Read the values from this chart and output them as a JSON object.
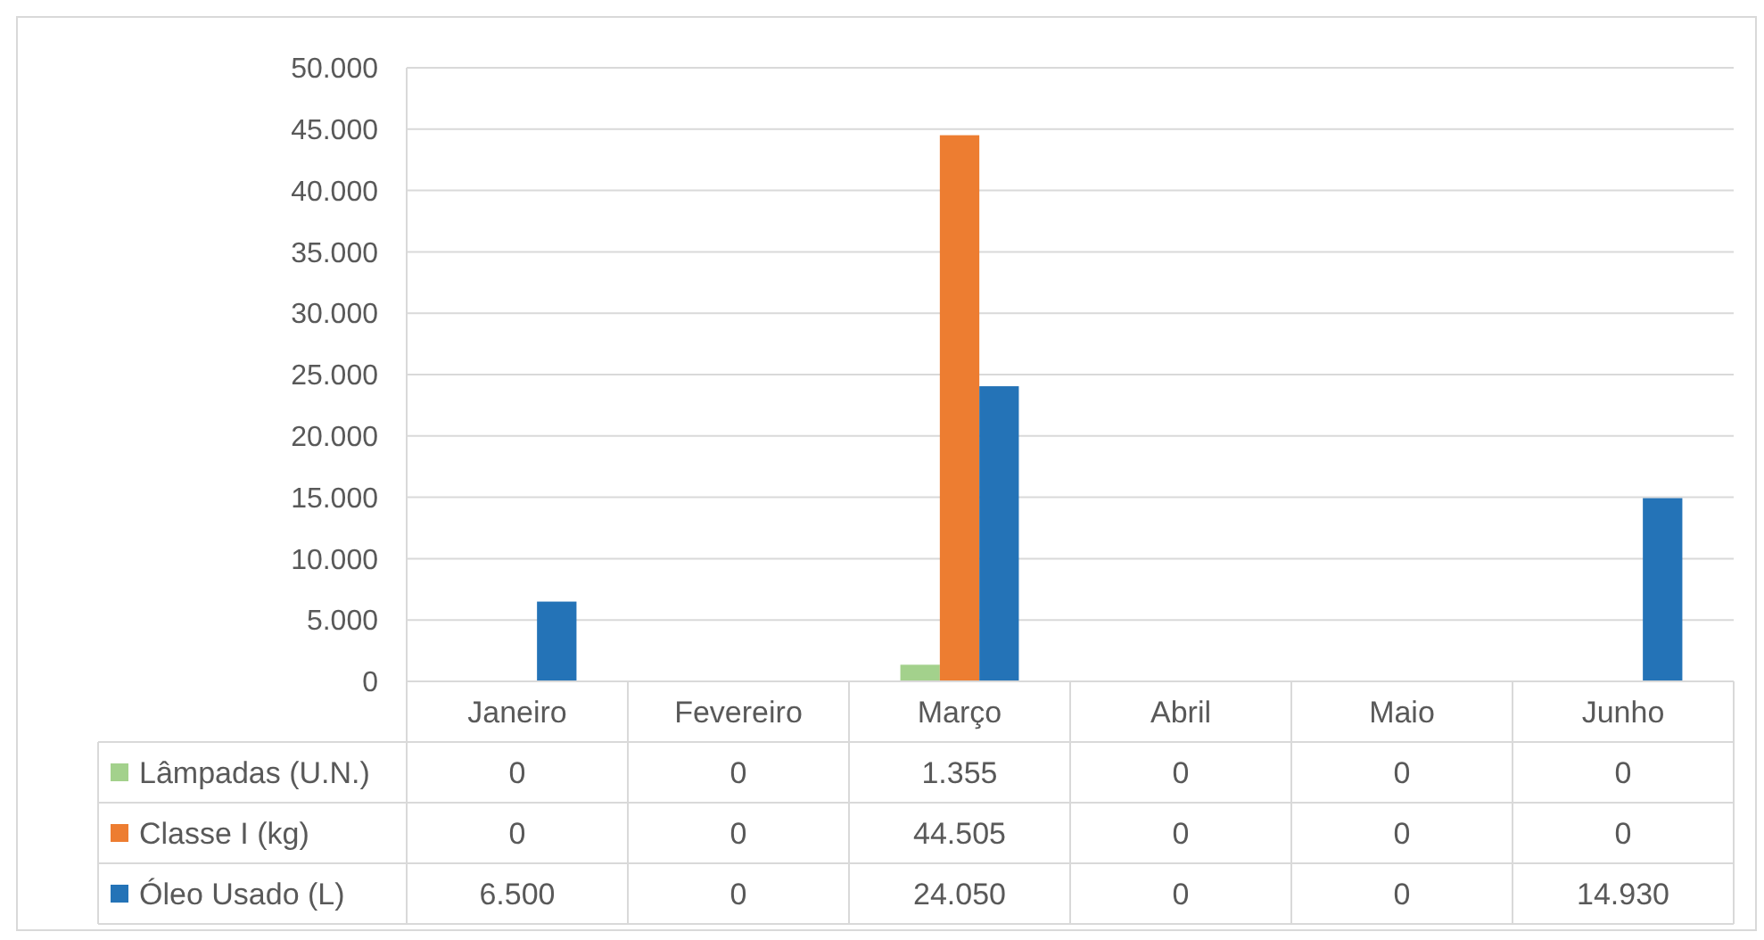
{
  "chart_data": {
    "type": "bar",
    "categories": [
      "Janeiro",
      "Fevereiro",
      "Março",
      "Abril",
      "Maio",
      "Junho"
    ],
    "series": [
      {
        "name": "Lâmpadas (U.N.)",
        "color": "#a3d18c",
        "values": [
          0,
          0,
          1355,
          0,
          0,
          0
        ],
        "value_labels": [
          "0",
          "0",
          "1.355",
          "0",
          "0",
          "0"
        ]
      },
      {
        "name": "Classe I (kg)",
        "color": "#ed7d31",
        "values": [
          0,
          0,
          44505,
          0,
          0,
          0
        ],
        "value_labels": [
          "0",
          "0",
          "44.505",
          "0",
          "0",
          "0"
        ]
      },
      {
        "name": "Óleo Usado (L)",
        "color": "#2473b7",
        "values": [
          6500,
          0,
          24050,
          0,
          0,
          14930
        ],
        "value_labels": [
          "6.500",
          "0",
          "24.050",
          "0",
          "0",
          "14.930"
        ]
      }
    ],
    "ylim": [
      0,
      50000
    ],
    "yticks": [
      {
        "value": 0,
        "label": "0"
      },
      {
        "value": 5000,
        "label": "5.000"
      },
      {
        "value": 10000,
        "label": "10.000"
      },
      {
        "value": 15000,
        "label": "15.000"
      },
      {
        "value": 20000,
        "label": "20.000"
      },
      {
        "value": 25000,
        "label": "25.000"
      },
      {
        "value": 30000,
        "label": "30.000"
      },
      {
        "value": 35000,
        "label": "35.000"
      },
      {
        "value": 40000,
        "label": "40.000"
      },
      {
        "value": 45000,
        "label": "45.000"
      },
      {
        "value": 50000,
        "label": "50.000"
      }
    ],
    "grid": "y",
    "legend": "bottom"
  }
}
